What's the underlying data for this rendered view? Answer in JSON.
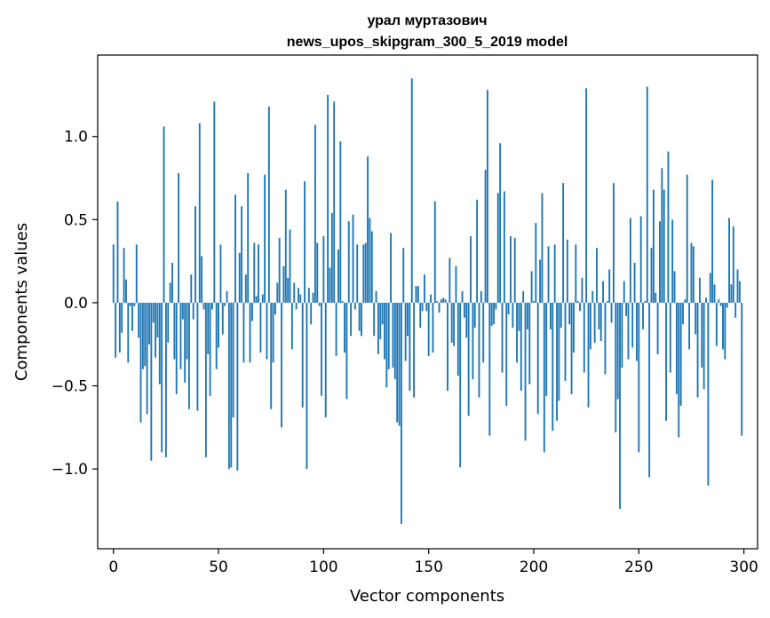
{
  "chart_data": {
    "type": "bar",
    "title": "урал муртазович",
    "subtitle": "news_upos_skipgram_300_5_2019 model",
    "xlabel": "Vector components",
    "ylabel": "Components values",
    "xlim": [
      -7.5,
      306.5
    ],
    "ylim": [
      -1.48,
      1.49
    ],
    "x_ticks": [
      0,
      50,
      100,
      150,
      200,
      250,
      300
    ],
    "x_tick_labels": [
      "0",
      "50",
      "100",
      "150",
      "200",
      "250",
      "300"
    ],
    "y_ticks": [
      -1.0,
      -0.5,
      0.0,
      0.5,
      1.0
    ],
    "y_tick_labels": [
      "−1.0",
      "−0.5",
      "0.0",
      "0.5",
      "1.0"
    ],
    "bar_color": "#1f77b4",
    "categories_count": 300,
    "values": [
      0.35,
      -0.33,
      0.61,
      -0.3,
      -0.18,
      0.33,
      0.14,
      -0.36,
      -0.02,
      -0.17,
      -0.02,
      0.35,
      -0.21,
      -0.72,
      -0.4,
      -0.38,
      -0.67,
      -0.25,
      -0.95,
      -0.12,
      -0.33,
      -0.21,
      -0.49,
      -0.9,
      1.06,
      -0.93,
      -0.24,
      0.12,
      0.24,
      -0.34,
      -0.55,
      0.78,
      -0.4,
      -0.1,
      -0.48,
      -0.34,
      -0.64,
      0.17,
      -0.1,
      0.58,
      -0.65,
      1.08,
      0.28,
      -0.04,
      -0.93,
      -0.31,
      -0.56,
      -0.04,
      1.21,
      -0.4,
      -0.27,
      0.35,
      -0.19,
      -0.02,
      0.07,
      -1.0,
      -0.99,
      -0.69,
      0.65,
      -1.01,
      0.3,
      0.58,
      -0.36,
      0.17,
      0.78,
      -0.36,
      -0.11,
      0.36,
      0.04,
      0.35,
      -0.3,
      0.05,
      0.77,
      -0.34,
      1.18,
      -0.64,
      -0.36,
      -0.07,
      0.12,
      0.39,
      -0.75,
      0.22,
      0.68,
      0.15,
      0.44,
      -0.28,
      0.12,
      -0.04,
      0.09,
      0.05,
      -0.63,
      0.73,
      -1.0,
      0.09,
      -0.13,
      0.06,
      1.07,
      0.36,
      -0.02,
      -0.56,
      0.4,
      -0.69,
      1.25,
      0.21,
      0.54,
      1.21,
      -0.32,
      0.32,
      0.97,
      0.01,
      -0.3,
      -0.58,
      0.49,
      -0.2,
      0.53,
      -0.04,
      0.35,
      -0.17,
      -0.2,
      0.35,
      0.36,
      0.88,
      0.51,
      0.43,
      -0.2,
      0.07,
      -0.31,
      -0.22,
      -0.13,
      -0.34,
      -0.51,
      -0.4,
      0.42,
      -0.39,
      -0.46,
      -0.72,
      -0.74,
      -1.33,
      0.33,
      -0.35,
      -0.2,
      -0.53,
      1.35,
      -0.57,
      0.1,
      0.1,
      -0.15,
      -0.05,
      0.17,
      -0.05,
      -0.32,
      0.05,
      -0.3,
      0.61,
      0.01,
      -0.06,
      0.02,
      0.03,
      0.02,
      -0.53,
      0.27,
      -0.24,
      -0.26,
      0.22,
      -0.44,
      -0.99,
      0.07,
      -0.09,
      -0.21,
      -0.68,
      0.4,
      -0.46,
      -0.15,
      0.62,
      -0.57,
      0.07,
      -0.36,
      0.8,
      1.28,
      -0.8,
      -0.14,
      -0.13,
      -0.04,
      0.66,
      0.96,
      -0.42,
      0.67,
      -0.62,
      -0.07,
      0.4,
      -0.15,
      0.39,
      -0.36,
      -0.17,
      -0.53,
      0.07,
      -0.83,
      -0.16,
      -0.49,
      0.19,
      0.01,
      0.48,
      -0.67,
      0.26,
      0.66,
      -0.9,
      -0.56,
      0.34,
      -0.16,
      -0.77,
      0.35,
      -0.71,
      -0.59,
      -0.15,
      0.72,
      -0.47,
      0.38,
      -0.13,
      -0.55,
      -0.3,
      0.35,
      0.01,
      -0.05,
      0.15,
      -0.42,
      1.29,
      -0.63,
      -0.28,
      0.07,
      -0.24,
      0.33,
      -0.16,
      -0.23,
      0.13,
      -0.43,
      0.01,
      0.2,
      -0.12,
      0.72,
      -0.78,
      -0.58,
      -1.24,
      -0.39,
      0.13,
      -0.08,
      -0.34,
      0.51,
      -0.27,
      0.24,
      -0.35,
      -0.9,
      0.52,
      -0.16,
      0.01,
      1.3,
      -1.05,
      0.33,
      0.68,
      0.06,
      -0.31,
      0.49,
      0.81,
      0.68,
      -0.71,
      0.91,
      -0.42,
      0.5,
      0.19,
      -0.55,
      -0.81,
      -0.62,
      -0.13,
      0.02,
      0.77,
      -0.28,
      0.36,
      0.34,
      -0.19,
      -0.57,
      0.15,
      -0.39,
      -0.52,
      0.03,
      -1.1,
      0.18,
      0.74,
      0.11,
      -0.26,
      0.02,
      -0.02,
      -0.28,
      -0.34,
      -0.03,
      0.51,
      0.11,
      0.46,
      -0.09,
      0.2,
      0.13,
      -0.8
    ]
  }
}
